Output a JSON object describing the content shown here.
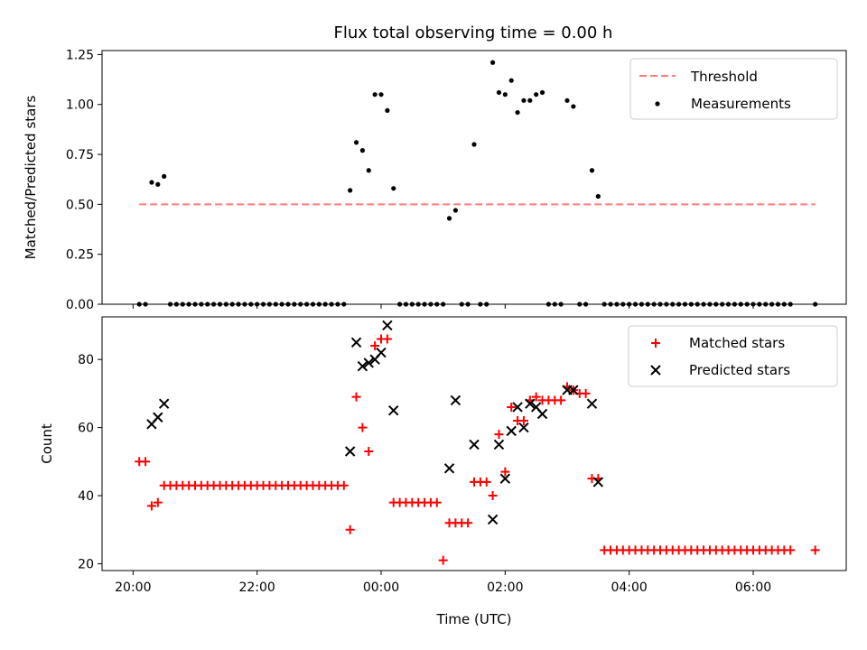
{
  "title": "Flux total observing time = 0.00 h",
  "chart_data": [
    {
      "type": "scatter",
      "ylabel": "Matched/Predicted stars",
      "xlim": [
        -4.5,
        7.5
      ],
      "ylim": [
        0.0,
        1.27
      ],
      "yticks": [
        0.0,
        0.25,
        0.5,
        0.75,
        1.0,
        1.25
      ],
      "ytick_labels": [
        "0.00",
        "0.25",
        "0.50",
        "0.75",
        "1.00",
        "1.25"
      ],
      "grid": false,
      "legend_position": "top-right",
      "threshold": {
        "name": "Threshold",
        "value": 0.5,
        "x_range": [
          -3.9,
          7.0
        ],
        "color": "#ff7b7b",
        "style": "dashed"
      },
      "series": [
        {
          "name": "Measurements",
          "marker": "dot",
          "color": "#000000",
          "points": [
            [
              -3.9,
              0.0
            ],
            [
              -3.8,
              0.0
            ],
            [
              -3.7,
              0.61
            ],
            [
              -3.6,
              0.6
            ],
            [
              -3.5,
              0.64
            ],
            [
              -3.4,
              0.0
            ],
            [
              -3.3,
              0.0
            ],
            [
              -3.2,
              0.0
            ],
            [
              -3.1,
              0.0
            ],
            [
              -3.0,
              0.0
            ],
            [
              -2.9,
              0.0
            ],
            [
              -2.8,
              0.0
            ],
            [
              -2.7,
              0.0
            ],
            [
              -2.6,
              0.0
            ],
            [
              -2.5,
              0.0
            ],
            [
              -2.4,
              0.0
            ],
            [
              -2.3,
              0.0
            ],
            [
              -2.2,
              0.0
            ],
            [
              -2.1,
              0.0
            ],
            [
              -2.0,
              0.0
            ],
            [
              -1.9,
              0.0
            ],
            [
              -1.8,
              0.0
            ],
            [
              -1.7,
              0.0
            ],
            [
              -1.6,
              0.0
            ],
            [
              -1.5,
              0.0
            ],
            [
              -1.4,
              0.0
            ],
            [
              -1.3,
              0.0
            ],
            [
              -1.2,
              0.0
            ],
            [
              -1.1,
              0.0
            ],
            [
              -1.0,
              0.0
            ],
            [
              -0.9,
              0.0
            ],
            [
              -0.8,
              0.0
            ],
            [
              -0.7,
              0.0
            ],
            [
              -0.6,
              0.0
            ],
            [
              -0.5,
              0.57
            ],
            [
              -0.4,
              0.81
            ],
            [
              -0.3,
              0.77
            ],
            [
              -0.2,
              0.67
            ],
            [
              -0.1,
              1.05
            ],
            [
              0.0,
              1.05
            ],
            [
              0.1,
              0.97
            ],
            [
              0.2,
              0.58
            ],
            [
              0.3,
              0.0
            ],
            [
              0.4,
              0.0
            ],
            [
              0.5,
              0.0
            ],
            [
              0.6,
              0.0
            ],
            [
              0.7,
              0.0
            ],
            [
              0.8,
              0.0
            ],
            [
              0.9,
              0.0
            ],
            [
              1.0,
              0.0
            ],
            [
              1.1,
              0.43
            ],
            [
              1.2,
              0.47
            ],
            [
              1.3,
              0.0
            ],
            [
              1.4,
              0.0
            ],
            [
              1.5,
              0.8
            ],
            [
              1.6,
              0.0
            ],
            [
              1.7,
              0.0
            ],
            [
              1.8,
              1.21
            ],
            [
              1.9,
              1.06
            ],
            [
              2.0,
              1.05
            ],
            [
              2.1,
              1.12
            ],
            [
              2.2,
              0.96
            ],
            [
              2.3,
              1.02
            ],
            [
              2.4,
              1.02
            ],
            [
              2.5,
              1.05
            ],
            [
              2.6,
              1.06
            ],
            [
              2.7,
              0.0
            ],
            [
              2.8,
              0.0
            ],
            [
              2.9,
              0.0
            ],
            [
              3.0,
              1.02
            ],
            [
              3.1,
              0.99
            ],
            [
              3.2,
              0.0
            ],
            [
              3.3,
              0.0
            ],
            [
              3.4,
              0.67
            ],
            [
              3.5,
              0.54
            ],
            [
              3.6,
              0.0
            ],
            [
              3.7,
              0.0
            ],
            [
              3.8,
              0.0
            ],
            [
              3.9,
              0.0
            ],
            [
              4.0,
              0.0
            ],
            [
              4.1,
              0.0
            ],
            [
              4.2,
              0.0
            ],
            [
              4.3,
              0.0
            ],
            [
              4.4,
              0.0
            ],
            [
              4.5,
              0.0
            ],
            [
              4.6,
              0.0
            ],
            [
              4.7,
              0.0
            ],
            [
              4.8,
              0.0
            ],
            [
              4.9,
              0.0
            ],
            [
              5.0,
              0.0
            ],
            [
              5.1,
              0.0
            ],
            [
              5.2,
              0.0
            ],
            [
              5.3,
              0.0
            ],
            [
              5.4,
              0.0
            ],
            [
              5.5,
              0.0
            ],
            [
              5.6,
              0.0
            ],
            [
              5.7,
              0.0
            ],
            [
              5.8,
              0.0
            ],
            [
              5.9,
              0.0
            ],
            [
              6.0,
              0.0
            ],
            [
              6.1,
              0.0
            ],
            [
              6.2,
              0.0
            ],
            [
              6.3,
              0.0
            ],
            [
              6.4,
              0.0
            ],
            [
              6.5,
              0.0
            ],
            [
              6.6,
              0.0
            ],
            [
              7.0,
              0.0
            ]
          ]
        }
      ]
    },
    {
      "type": "scatter",
      "xlabel": "Time (UTC)",
      "ylabel": "Count",
      "xlim": [
        -4.5,
        7.5
      ],
      "ylim": [
        18,
        92.5
      ],
      "yticks": [
        20,
        40,
        60,
        80
      ],
      "ytick_labels": [
        "20",
        "40",
        "60",
        "80"
      ],
      "xticks": [
        -4,
        -2,
        0,
        2,
        4,
        6
      ],
      "xtick_labels": [
        "20:00",
        "22:00",
        "00:00",
        "02:00",
        "04:00",
        "06:00"
      ],
      "grid": false,
      "legend_position": "top-right",
      "series": [
        {
          "name": "Matched stars",
          "marker": "plus",
          "color": "#ff0000",
          "points": [
            [
              -3.9,
              50
            ],
            [
              -3.8,
              50
            ],
            [
              -3.7,
              37
            ],
            [
              -3.6,
              38
            ],
            [
              -3.5,
              43
            ],
            [
              -3.4,
              43
            ],
            [
              -3.3,
              43
            ],
            [
              -3.2,
              43
            ],
            [
              -3.1,
              43
            ],
            [
              -3.0,
              43
            ],
            [
              -2.9,
              43
            ],
            [
              -2.8,
              43
            ],
            [
              -2.7,
              43
            ],
            [
              -2.6,
              43
            ],
            [
              -2.5,
              43
            ],
            [
              -2.4,
              43
            ],
            [
              -2.3,
              43
            ],
            [
              -2.2,
              43
            ],
            [
              -2.1,
              43
            ],
            [
              -2.0,
              43
            ],
            [
              -1.9,
              43
            ],
            [
              -1.8,
              43
            ],
            [
              -1.7,
              43
            ],
            [
              -1.6,
              43
            ],
            [
              -1.5,
              43
            ],
            [
              -1.4,
              43
            ],
            [
              -1.3,
              43
            ],
            [
              -1.2,
              43
            ],
            [
              -1.1,
              43
            ],
            [
              -1.0,
              43
            ],
            [
              -0.9,
              43
            ],
            [
              -0.8,
              43
            ],
            [
              -0.7,
              43
            ],
            [
              -0.6,
              43
            ],
            [
              -0.5,
              30
            ],
            [
              -0.4,
              69
            ],
            [
              -0.3,
              60
            ],
            [
              -0.2,
              53
            ],
            [
              -0.1,
              84
            ],
            [
              0.0,
              86
            ],
            [
              0.1,
              86
            ],
            [
              0.2,
              38
            ],
            [
              0.3,
              38
            ],
            [
              0.4,
              38
            ],
            [
              0.5,
              38
            ],
            [
              0.6,
              38
            ],
            [
              0.7,
              38
            ],
            [
              0.8,
              38
            ],
            [
              0.9,
              38
            ],
            [
              1.0,
              21
            ],
            [
              1.1,
              32
            ],
            [
              1.2,
              32
            ],
            [
              1.3,
              32
            ],
            [
              1.4,
              32
            ],
            [
              1.5,
              44
            ],
            [
              1.6,
              44
            ],
            [
              1.7,
              44
            ],
            [
              1.8,
              40
            ],
            [
              1.9,
              58
            ],
            [
              2.0,
              47
            ],
            [
              2.1,
              66
            ],
            [
              2.2,
              62
            ],
            [
              2.3,
              62
            ],
            [
              2.4,
              68
            ],
            [
              2.5,
              69
            ],
            [
              2.6,
              68
            ],
            [
              2.7,
              68
            ],
            [
              2.8,
              68
            ],
            [
              2.9,
              68
            ],
            [
              3.0,
              72
            ],
            [
              3.1,
              71
            ],
            [
              3.2,
              70
            ],
            [
              3.3,
              70
            ],
            [
              3.4,
              45
            ],
            [
              3.5,
              45
            ],
            [
              3.6,
              24
            ],
            [
              3.7,
              24
            ],
            [
              3.8,
              24
            ],
            [
              3.9,
              24
            ],
            [
              4.0,
              24
            ],
            [
              4.1,
              24
            ],
            [
              4.2,
              24
            ],
            [
              4.3,
              24
            ],
            [
              4.4,
              24
            ],
            [
              4.5,
              24
            ],
            [
              4.6,
              24
            ],
            [
              4.7,
              24
            ],
            [
              4.8,
              24
            ],
            [
              4.9,
              24
            ],
            [
              5.0,
              24
            ],
            [
              5.1,
              24
            ],
            [
              5.2,
              24
            ],
            [
              5.3,
              24
            ],
            [
              5.4,
              24
            ],
            [
              5.5,
              24
            ],
            [
              5.6,
              24
            ],
            [
              5.7,
              24
            ],
            [
              5.8,
              24
            ],
            [
              5.9,
              24
            ],
            [
              6.0,
              24
            ],
            [
              6.1,
              24
            ],
            [
              6.2,
              24
            ],
            [
              6.3,
              24
            ],
            [
              6.4,
              24
            ],
            [
              6.5,
              24
            ],
            [
              6.6,
              24
            ],
            [
              7.0,
              24
            ]
          ]
        },
        {
          "name": "Predicted stars",
          "marker": "x",
          "color": "#000000",
          "points": [
            [
              -3.7,
              61
            ],
            [
              -3.6,
              63
            ],
            [
              -3.5,
              67
            ],
            [
              -0.5,
              53
            ],
            [
              -0.4,
              85
            ],
            [
              -0.3,
              78
            ],
            [
              -0.2,
              79
            ],
            [
              -0.1,
              80
            ],
            [
              0.0,
              82
            ],
            [
              0.1,
              90
            ],
            [
              0.2,
              65
            ],
            [
              1.1,
              48
            ],
            [
              1.2,
              68
            ],
            [
              1.5,
              55
            ],
            [
              1.8,
              33
            ],
            [
              1.9,
              55
            ],
            [
              2.0,
              45
            ],
            [
              2.1,
              59
            ],
            [
              2.2,
              66
            ],
            [
              2.3,
              60
            ],
            [
              2.4,
              67
            ],
            [
              2.5,
              66
            ],
            [
              2.6,
              64
            ],
            [
              3.0,
              71
            ],
            [
              3.1,
              71
            ],
            [
              3.4,
              67
            ],
            [
              3.5,
              44
            ]
          ]
        }
      ]
    }
  ]
}
